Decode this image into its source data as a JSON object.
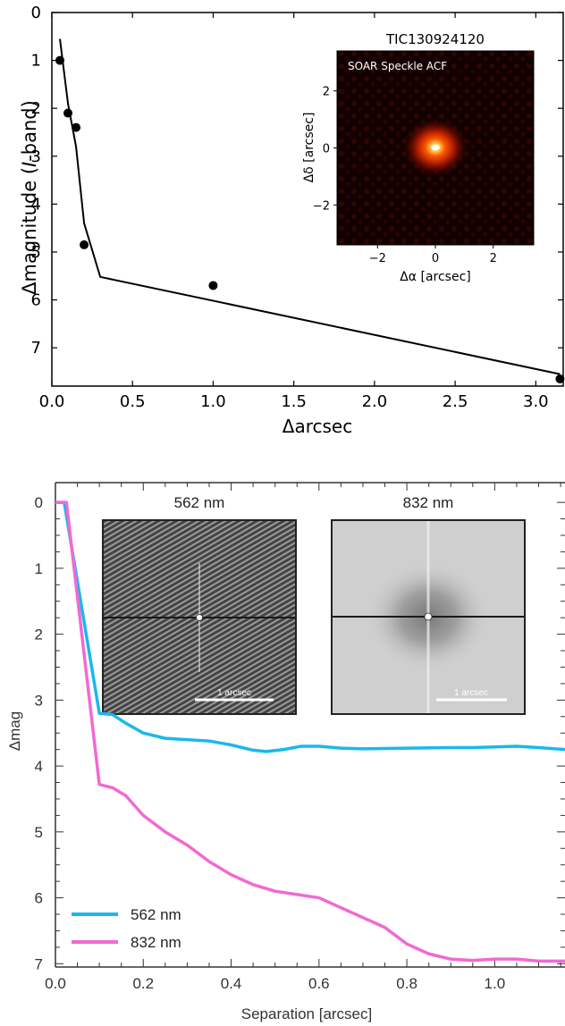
{
  "chart_data": [
    {
      "type": "scatter",
      "xlabel": "Δarcsec",
      "ylabel": "Δmagnitude (I-band)",
      "ylabel_parts": [
        "Δmagnitude (",
        "I",
        "-band)"
      ],
      "xlim": [
        0.0,
        3.17
      ],
      "ylim": [
        7.8,
        0.0
      ],
      "x_ticks": [
        0.0,
        0.5,
        1.0,
        1.5,
        2.0,
        2.5,
        3.0
      ],
      "x_tick_labels": [
        "0.0",
        "0.5",
        "1.0",
        "1.5",
        "2.0",
        "2.5",
        "3.0"
      ],
      "y_ticks": [
        0,
        1,
        2,
        3,
        4,
        5,
        6,
        7
      ],
      "y_tick_labels": [
        "0",
        "1",
        "2",
        "3",
        "4",
        "5",
        "6",
        "7"
      ],
      "points": {
        "x": [
          0.05,
          0.1,
          0.15,
          0.2,
          1.0,
          3.15
        ],
        "y": [
          1.0,
          2.1,
          2.4,
          4.85,
          5.7,
          7.65
        ]
      },
      "contrast_curve": {
        "x": [
          0.05,
          0.1,
          0.15,
          0.2,
          0.3,
          3.15
        ],
        "y": [
          0.55,
          1.9,
          2.8,
          4.4,
          5.52,
          7.55
        ]
      },
      "inset": {
        "title": "TIC130924120",
        "label": "SOAR Speckle ACF",
        "xlabel": "Δα [arcsec]",
        "ylabel": "Δδ [arcsec]",
        "xlim": [
          -3.4,
          3.4
        ],
        "ylim": [
          -3.4,
          3.4
        ],
        "x_ticks": [
          -2,
          0,
          2
        ],
        "x_tick_labels": [
          "−2",
          "0",
          "2"
        ],
        "y_ticks": [
          2,
          0,
          -2
        ],
        "y_tick_labels": [
          "2",
          "0",
          "−2"
        ]
      },
      "grid": false,
      "colors": {
        "line": "#000000",
        "points": "#000000"
      }
    },
    {
      "type": "line",
      "xlabel": "Separation [arcsec]",
      "ylabel": "Δmag",
      "xlim": [
        0.0,
        1.16
      ],
      "ylim": [
        7.05,
        -0.3
      ],
      "x_ticks": [
        0.0,
        0.2,
        0.4,
        0.6,
        0.8,
        1.0
      ],
      "x_tick_labels": [
        "0.0",
        "0.2",
        "0.4",
        "0.6",
        "0.8",
        "1.0"
      ],
      "y_ticks": [
        0,
        1,
        2,
        3,
        4,
        5,
        6,
        7
      ],
      "y_tick_labels": [
        "0",
        "1",
        "2",
        "3",
        "4",
        "5",
        "6",
        "7"
      ],
      "series": [
        {
          "name": "562 nm",
          "color": "#1ab8ec",
          "x": [
            0.0,
            0.02,
            0.1,
            0.13,
            0.16,
            0.2,
            0.25,
            0.3,
            0.35,
            0.4,
            0.45,
            0.48,
            0.52,
            0.56,
            0.6,
            0.65,
            0.7,
            0.8,
            0.9,
            0.95,
            1.0,
            1.05,
            1.1,
            1.16
          ],
          "y": [
            0.0,
            0.0,
            3.2,
            3.22,
            3.35,
            3.5,
            3.58,
            3.6,
            3.62,
            3.68,
            3.76,
            3.78,
            3.75,
            3.7,
            3.7,
            3.73,
            3.74,
            3.73,
            3.72,
            3.72,
            3.71,
            3.7,
            3.72,
            3.75
          ]
        },
        {
          "name": "832 nm",
          "color": "#f06ad2",
          "x": [
            0.0,
            0.025,
            0.1,
            0.13,
            0.16,
            0.2,
            0.25,
            0.3,
            0.35,
            0.4,
            0.45,
            0.5,
            0.55,
            0.6,
            0.65,
            0.7,
            0.75,
            0.8,
            0.85,
            0.9,
            0.95,
            1.0,
            1.05,
            1.1,
            1.16
          ],
          "y": [
            0.0,
            0.0,
            4.28,
            4.33,
            4.45,
            4.75,
            5.0,
            5.2,
            5.45,
            5.65,
            5.8,
            5.9,
            5.95,
            6.0,
            6.15,
            6.3,
            6.45,
            6.7,
            6.85,
            6.93,
            6.95,
            6.93,
            6.93,
            6.96,
            6.96
          ]
        }
      ],
      "insets": [
        {
          "title": "562 nm",
          "scalebar": "1 arcsec"
        },
        {
          "title": "832 nm",
          "scalebar": "1 arcsec"
        }
      ],
      "legend": "bottom-left",
      "grid": false
    }
  ]
}
